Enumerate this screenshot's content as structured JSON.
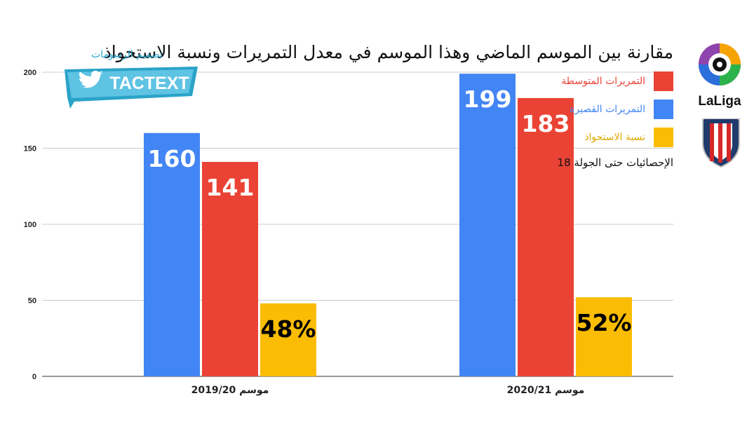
{
  "title": "مقارنة بين الموسم الماضي وهذا الموسم في معدل التمريرات ونسبة الاستحواذ",
  "designer": "تصميم الرسومات",
  "brand": "TACTEXT",
  "league_logo_text": "LaLiga",
  "note": "الإحصائيات حتى الجولة 18",
  "colors": {
    "short": "#4285f4",
    "medium": "#ea4335",
    "possession": "#fbbc04",
    "brand": "#2aa3c8"
  },
  "legend": [
    {
      "label": "التمريرات المتوسطة",
      "color": "#ea4335"
    },
    {
      "label": "التمريرات القصيرة",
      "color": "#4285f4"
    },
    {
      "label": "نسبة الاستحواذ",
      "color": "#fbbc04"
    }
  ],
  "chart_data": {
    "type": "bar",
    "categories": [
      "موسم 2019/20",
      "موسم 2020/21"
    ],
    "series": [
      {
        "name": "التمريرات القصيرة",
        "values": [
          160,
          199
        ],
        "labels": [
          "160",
          "199"
        ]
      },
      {
        "name": "التمريرات المتوسطة",
        "values": [
          141,
          183
        ],
        "labels": [
          "141",
          "183"
        ]
      },
      {
        "name": "نسبة الاستحواذ",
        "values": [
          48,
          52
        ],
        "labels": [
          "48%",
          "52%"
        ]
      }
    ],
    "ylim": [
      0,
      200
    ],
    "yticks": [
      "0",
      "50",
      "100",
      "150",
      "200"
    ],
    "grid": true,
    "legend_position": "top-right"
  }
}
